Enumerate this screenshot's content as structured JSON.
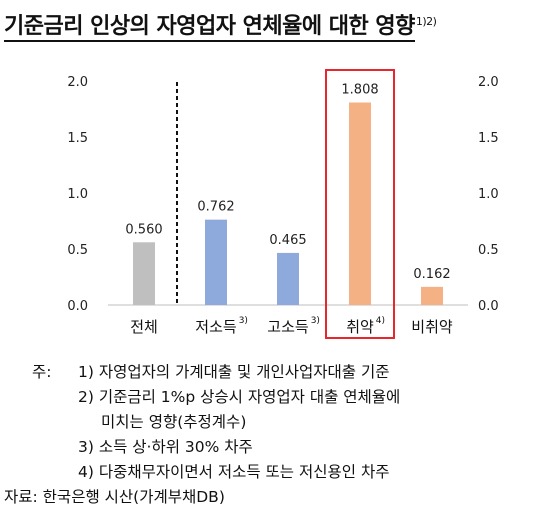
{
  "title": {
    "text": "기준금리 인상의 자영업자 연체율에 대한 영향",
    "sup": "1)2)"
  },
  "chart_data": {
    "type": "bar",
    "categories": [
      "전체",
      "저소득",
      "고소득",
      "취약",
      "비취약"
    ],
    "category_sups": [
      "",
      "3)",
      "3)",
      "4)",
      ""
    ],
    "values": [
      0.56,
      0.762,
      0.465,
      1.808,
      0.162
    ],
    "value_labels": [
      "0.560",
      "0.762",
      "0.465",
      "1.808",
      "0.162"
    ],
    "colors": [
      "#BFBFBF",
      "#8EA9DB",
      "#8EA9DB",
      "#F4B183",
      "#F4B183"
    ],
    "ylim": [
      0,
      2.0
    ],
    "yticks": [
      "0.0",
      "0.5",
      "1.0",
      "1.5",
      "2.0"
    ],
    "grid": false,
    "highlight_color": "#E8262B",
    "separator_after": "전체"
  },
  "notes": {
    "prefix": "주:",
    "items": [
      "1) 자영업자의 가계대출 및 개인사업자대출 기준",
      "2) 기준금리 1%p 상승시 자영업자 대출 연체율에",
      "미치는 영향(추정계수)",
      "3) 소득 상·하위 30% 차주",
      "4) 다중채무자이면서 저소득 또는 저신용인 차주"
    ],
    "source": "자료: 한국은행 시산(가계부채DB)"
  }
}
